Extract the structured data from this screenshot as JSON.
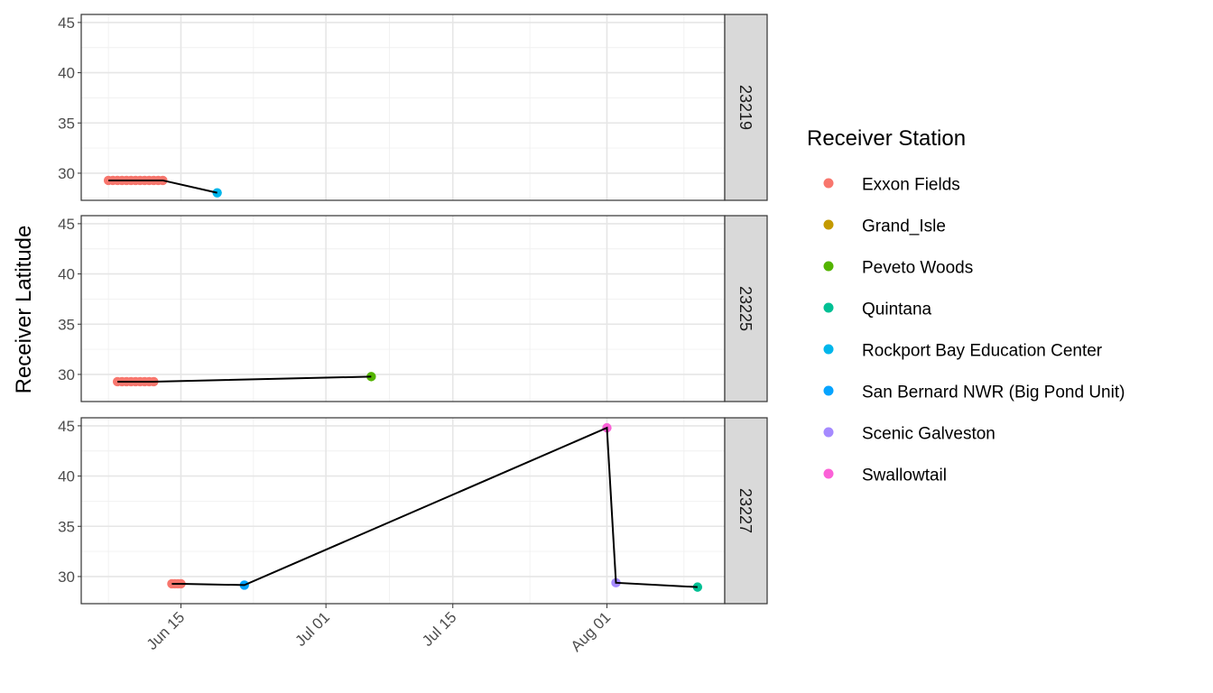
{
  "chart_data": {
    "type": "scatter",
    "facet_by": "tag",
    "facet_strip_position": "right",
    "ylabel": "Receiver Latitude",
    "xlabel": "",
    "x_type": "date",
    "xlim": [
      "2024-06-04",
      "2024-08-14"
    ],
    "ylim": [
      27.3,
      45.8
    ],
    "x_ticks": [
      {
        "date": "2024-06-15",
        "label": "Jun 15"
      },
      {
        "date": "2024-07-01",
        "label": "Jul 01"
      },
      {
        "date": "2024-07-15",
        "label": "Jul 15"
      },
      {
        "date": "2024-08-01",
        "label": "Aug 01"
      }
    ],
    "y_ticks": [
      30,
      35,
      40,
      45
    ],
    "grid": true,
    "legend": {
      "title": "Receiver Station",
      "position": "right",
      "entries": [
        {
          "name": "Exxon Fields",
          "color": "#F8766D"
        },
        {
          "name": "Grand_Isle",
          "color": "#C49A00"
        },
        {
          "name": "Peveto Woods",
          "color": "#53B400"
        },
        {
          "name": "Quintana",
          "color": "#00C094"
        },
        {
          "name": "Rockport Bay Education Center",
          "color": "#00B6EB"
        },
        {
          "name": "San Bernard NWR (Big Pond Unit)",
          "color": "#06A4FF"
        },
        {
          "name": "Scenic Galveston",
          "color": "#A58AFF"
        },
        {
          "name": "Swallowtail",
          "color": "#FB61D7"
        }
      ]
    },
    "facets": [
      {
        "label": "23219",
        "path": [
          {
            "x": "2024-06-07",
            "y": 29.28
          },
          {
            "x": "2024-06-13",
            "y": 29.28
          },
          {
            "x": "2024-06-19",
            "y": 28.05
          }
        ],
        "points": [
          {
            "x": "2024-06-07",
            "y": 29.28,
            "station": "Exxon Fields"
          },
          {
            "x": "2024-06-07 12:00",
            "y": 29.28,
            "station": "Exxon Fields"
          },
          {
            "x": "2024-06-08",
            "y": 29.28,
            "station": "Exxon Fields"
          },
          {
            "x": "2024-06-08 12:00",
            "y": 29.28,
            "station": "Exxon Fields"
          },
          {
            "x": "2024-06-09",
            "y": 29.28,
            "station": "Exxon Fields"
          },
          {
            "x": "2024-06-09 12:00",
            "y": 29.28,
            "station": "Exxon Fields"
          },
          {
            "x": "2024-06-10",
            "y": 29.28,
            "station": "Exxon Fields"
          },
          {
            "x": "2024-06-10 12:00",
            "y": 29.28,
            "station": "Exxon Fields"
          },
          {
            "x": "2024-06-11",
            "y": 29.28,
            "station": "Exxon Fields"
          },
          {
            "x": "2024-06-11 12:00",
            "y": 29.28,
            "station": "Exxon Fields"
          },
          {
            "x": "2024-06-12",
            "y": 29.28,
            "station": "Exxon Fields"
          },
          {
            "x": "2024-06-12 12:00",
            "y": 29.28,
            "station": "Exxon Fields"
          },
          {
            "x": "2024-06-13",
            "y": 29.28,
            "station": "Exxon Fields"
          },
          {
            "x": "2024-06-19",
            "y": 28.05,
            "station": "Rockport Bay Education Center"
          }
        ]
      },
      {
        "label": "23225",
        "path": [
          {
            "x": "2024-06-08",
            "y": 29.28
          },
          {
            "x": "2024-06-12",
            "y": 29.28
          },
          {
            "x": "2024-07-06",
            "y": 29.78
          }
        ],
        "points": [
          {
            "x": "2024-06-08",
            "y": 29.28,
            "station": "Exxon Fields"
          },
          {
            "x": "2024-06-08 12:00",
            "y": 29.28,
            "station": "Exxon Fields"
          },
          {
            "x": "2024-06-09",
            "y": 29.28,
            "station": "Exxon Fields"
          },
          {
            "x": "2024-06-09 12:00",
            "y": 29.28,
            "station": "Exxon Fields"
          },
          {
            "x": "2024-06-10",
            "y": 29.28,
            "station": "Exxon Fields"
          },
          {
            "x": "2024-06-10 12:00",
            "y": 29.28,
            "station": "Exxon Fields"
          },
          {
            "x": "2024-06-11",
            "y": 29.28,
            "station": "Exxon Fields"
          },
          {
            "x": "2024-06-11 12:00",
            "y": 29.28,
            "station": "Exxon Fields"
          },
          {
            "x": "2024-06-12",
            "y": 29.28,
            "station": "Exxon Fields"
          },
          {
            "x": "2024-07-06",
            "y": 29.78,
            "station": "Peveto Woods"
          }
        ]
      },
      {
        "label": "23227",
        "path": [
          {
            "x": "2024-06-14",
            "y": 29.28
          },
          {
            "x": "2024-06-15",
            "y": 29.28
          },
          {
            "x": "2024-06-22",
            "y": 29.15
          },
          {
            "x": "2024-08-01",
            "y": 44.8
          },
          {
            "x": "2024-08-02",
            "y": 29.38
          },
          {
            "x": "2024-08-11",
            "y": 28.95
          }
        ],
        "points": [
          {
            "x": "2024-06-14",
            "y": 29.28,
            "station": "Exxon Fields"
          },
          {
            "x": "2024-06-14 08:00",
            "y": 29.28,
            "station": "Exxon Fields"
          },
          {
            "x": "2024-06-14 16:00",
            "y": 29.28,
            "station": "Exxon Fields"
          },
          {
            "x": "2024-06-15",
            "y": 29.28,
            "station": "Exxon Fields"
          },
          {
            "x": "2024-06-22",
            "y": 29.15,
            "station": "San Bernard NWR (Big Pond Unit)"
          },
          {
            "x": "2024-08-01",
            "y": 44.8,
            "station": "Swallowtail"
          },
          {
            "x": "2024-08-02",
            "y": 29.38,
            "station": "Scenic Galveston"
          },
          {
            "x": "2024-08-11",
            "y": 28.95,
            "station": "Quintana"
          }
        ]
      }
    ]
  }
}
